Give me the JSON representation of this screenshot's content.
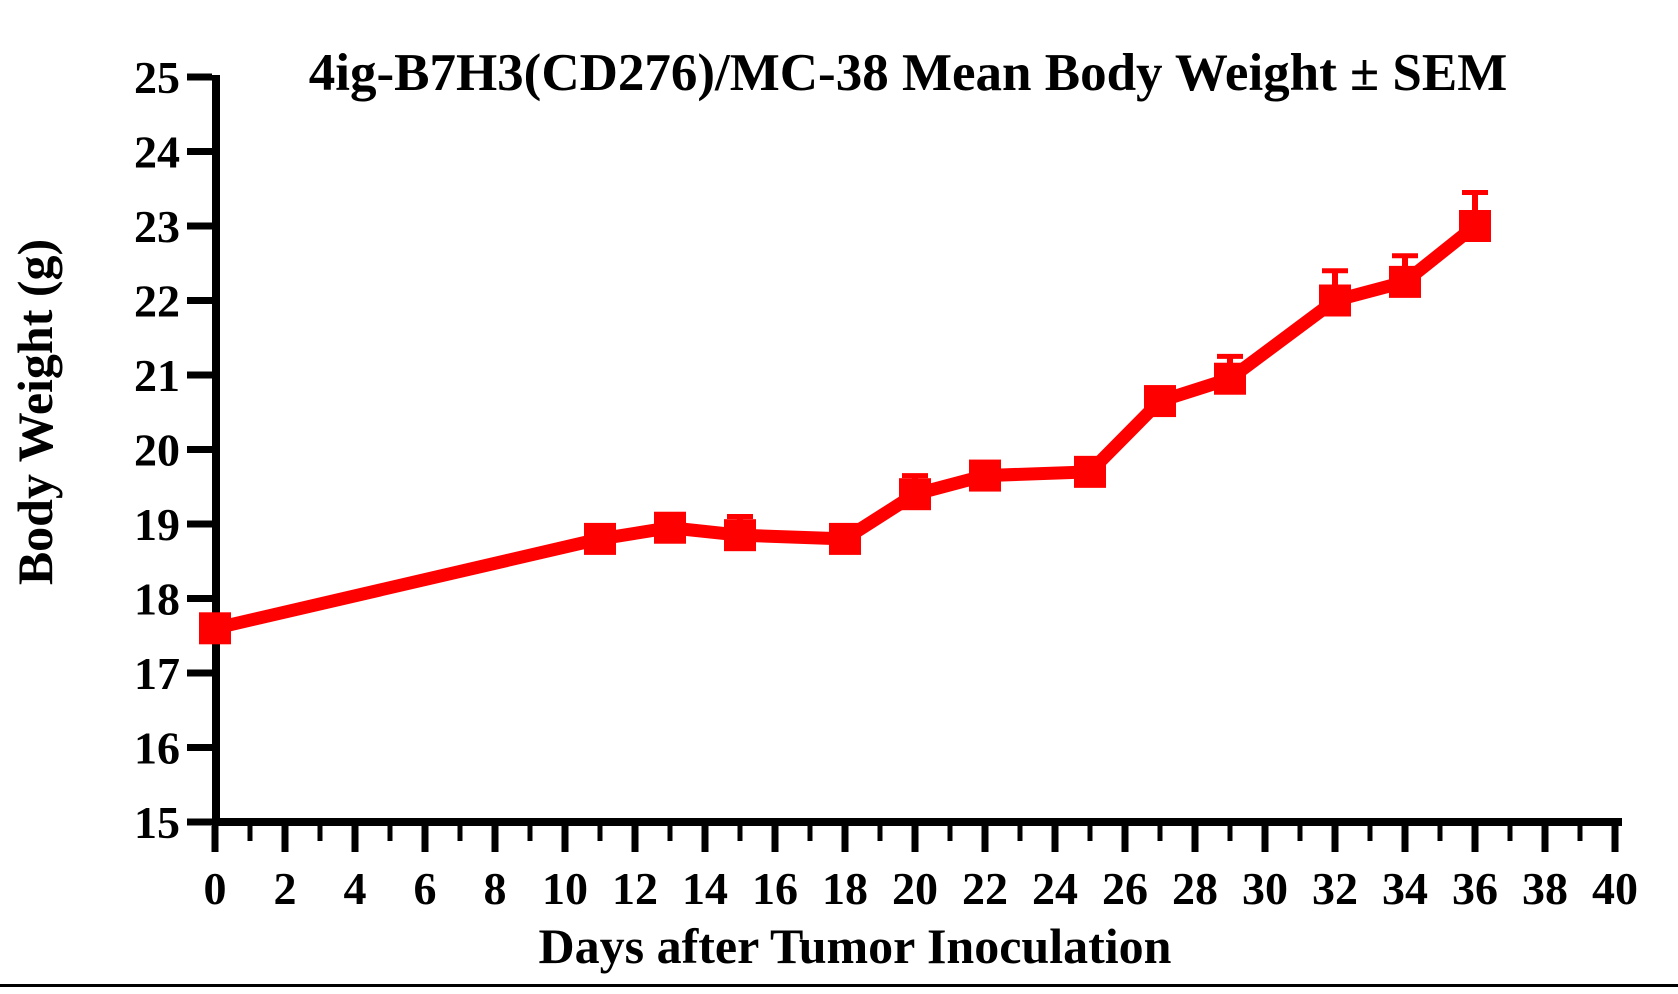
{
  "page": {
    "background_color": "#ffffff",
    "rule_color": "#000000"
  },
  "chart_data": {
    "type": "line",
    "title": "4ig-B7H3(CD276)/MC-38 Mean Body Weight ± SEM",
    "xlabel": "Days after Tumor Inoculation",
    "ylabel": "Body Weight (g)",
    "xlim": [
      0,
      40
    ],
    "ylim": [
      15,
      25
    ],
    "x_major_tick_step": 2,
    "x_minor_tick_step": 1,
    "y_tick_step": 1,
    "grid": false,
    "legend_position": "none",
    "axis_color": "#000000",
    "series": [
      {
        "name": "4ig-B7H3(CD276)/MC-38",
        "color": "#ff0000",
        "marker": "square",
        "error_bars": "SEM",
        "error_direction": "up",
        "x": [
          0,
          11,
          13,
          15,
          18,
          20,
          22,
          25,
          27,
          29,
          32,
          34,
          36
        ],
        "y": [
          17.6,
          18.8,
          18.95,
          18.85,
          18.8,
          19.4,
          19.65,
          19.7,
          20.65,
          20.95,
          22.0,
          22.25,
          23.0
        ],
        "sem": [
          0,
          0,
          0,
          0.25,
          0,
          0.25,
          0,
          0,
          0,
          0.3,
          0.4,
          0.35,
          0.45
        ]
      }
    ]
  }
}
